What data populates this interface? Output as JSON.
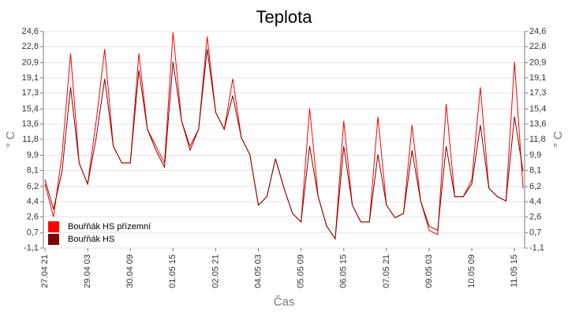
{
  "chart_data": {
    "type": "line",
    "title": "Teplota",
    "x_label": "Čas",
    "y_label": "° C",
    "x": [
      "27.04 21",
      "28.04 03",
      "28.04 09",
      "28.04 15",
      "28.04 21",
      "29.04 03",
      "29.04 09",
      "29.04 15",
      "29.04 21",
      "30.04 03",
      "30.04 09",
      "30.04 15",
      "30.04 21",
      "01.05 03",
      "01.05 09",
      "01.05 15",
      "01.05 21",
      "02.05 03",
      "02.05 09",
      "02.05 15",
      "02.05 21",
      "03.05 03",
      "03.05 09",
      "03.05 15",
      "03.05 21",
      "04.05 03",
      "04.05 09",
      "04.05 15",
      "04.05 21",
      "05.05 03",
      "05.05 09",
      "05.05 15",
      "05.05 21",
      "06.05 03",
      "06.05 09",
      "06.05 15",
      "06.05 21",
      "07.05 03",
      "07.05 09",
      "07.05 15",
      "07.05 21",
      "08.05 03",
      "08.05 09",
      "08.05 15",
      "08.05 21",
      "09.05 03",
      "09.05 09",
      "09.05 15",
      "09.05 21",
      "10.05 03",
      "10.05 09",
      "10.05 15",
      "10.05 21",
      "11.05 03",
      "11.05 09",
      "11.05 15",
      "11.05 21"
    ],
    "xticks": [
      "27.04 21",
      "29.04 03",
      "30.04 09",
      "01.05 15",
      "02.05 21",
      "04.05 03",
      "05.05 09",
      "06.05 15",
      "07.05 21",
      "09.05 03",
      "10.05 09",
      "11.05 15"
    ],
    "series": [
      {
        "name": "Bouřňák HS přízemní",
        "color": "#ff0000",
        "values": [
          6.5,
          2.6,
          10,
          22,
          9,
          6.5,
          14,
          22.5,
          11,
          9,
          9,
          22,
          13,
          11,
          9,
          24.5,
          14,
          11,
          13,
          24,
          15,
          13,
          19,
          12,
          10,
          4,
          5,
          9.5,
          6,
          3,
          2,
          15.5,
          5,
          1.5,
          0,
          14,
          4,
          2,
          2,
          14.5,
          4,
          2.5,
          3,
          13.5,
          4.5,
          1,
          0.5,
          16,
          5,
          5,
          7,
          18,
          6,
          5,
          4.5,
          21,
          6
        ]
      },
      {
        "name": "Bouřňák HS",
        "color": "#800000",
        "values": [
          7,
          3.5,
          8,
          18,
          9,
          6.5,
          12,
          19,
          11,
          9,
          9,
          20,
          13,
          10.5,
          8.5,
          21,
          14,
          10.5,
          13,
          22.5,
          15,
          13,
          17,
          12,
          10,
          4,
          5,
          9.5,
          6,
          3,
          2,
          11,
          5,
          1.5,
          0,
          11,
          4,
          2,
          2,
          10,
          4,
          2.5,
          3,
          10.5,
          4.5,
          1.5,
          1,
          11,
          5,
          5,
          6.5,
          13.5,
          6,
          5,
          4.5,
          14.5,
          8
        ]
      }
    ],
    "ylim": [
      -1.1,
      24.6
    ],
    "yticks": [
      {
        "value": -1.1,
        "label": "-1,1"
      },
      {
        "value": 0.7,
        "label": "0,7"
      },
      {
        "value": 2.6,
        "label": "2,6"
      },
      {
        "value": 4.4,
        "label": "4,4"
      },
      {
        "value": 6.2,
        "label": "6,2"
      },
      {
        "value": 8.1,
        "label": "8,1"
      },
      {
        "value": 9.9,
        "label": "9,9"
      },
      {
        "value": 11.8,
        "label": "11,8"
      },
      {
        "value": 13.6,
        "label": "13,6"
      },
      {
        "value": 15.4,
        "label": "15,4"
      },
      {
        "value": 17.3,
        "label": "17,3"
      },
      {
        "value": 19.1,
        "label": "19,1"
      },
      {
        "value": 20.9,
        "label": "20,9"
      },
      {
        "value": 22.8,
        "label": "22,8"
      },
      {
        "value": 24.6,
        "label": "24,6"
      }
    ],
    "grid": true,
    "legend": "lower left"
  }
}
